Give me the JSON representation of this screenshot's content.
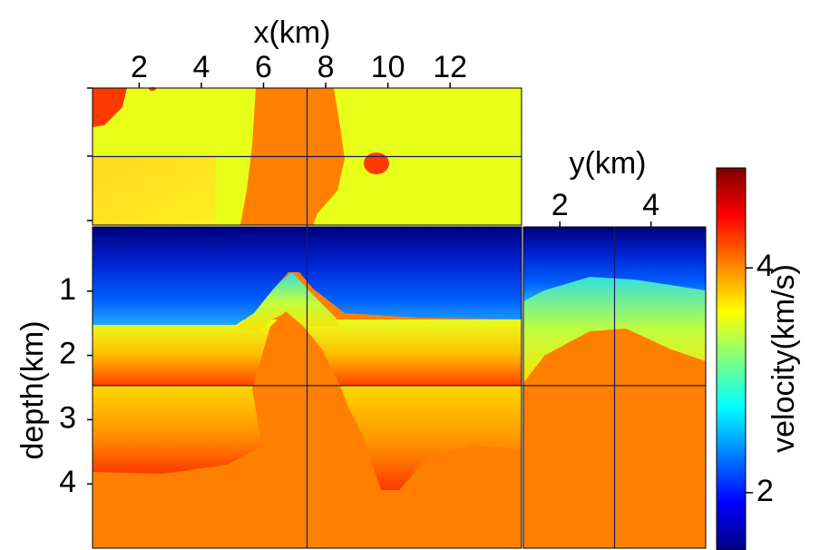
{
  "chart_data": {
    "type": "velocity-cube",
    "x_label": "x(km)",
    "xlim": [
      0.5,
      14.3
    ],
    "xticks": [
      2,
      4,
      6,
      8,
      10,
      12
    ],
    "y_label": "y(km)",
    "ylim": [
      1.2,
      5.2
    ],
    "yticks": [
      2,
      4
    ],
    "depth_label": "depth(km)",
    "depth_lim": [
      0,
      5
    ],
    "depth_ticks": [
      1,
      2,
      3,
      4
    ],
    "colorbar": {
      "label": "velocity(km/s)",
      "lim": [
        1.49,
        4.89
      ],
      "ticks": [
        2,
        4
      ]
    },
    "crosshair": {
      "x": 7.4,
      "y": 3.2,
      "depth": 2.47
    }
  }
}
